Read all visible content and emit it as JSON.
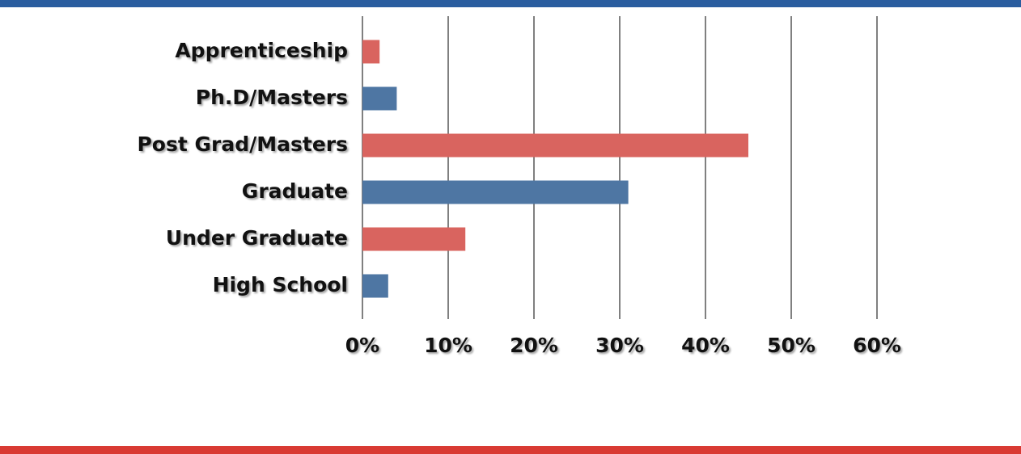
{
  "chart_data": {
    "type": "barh",
    "categories": [
      "Apprenticeship",
      "Ph.D/Masters",
      "Post Grad/Masters",
      "Graduate",
      "Under Graduate",
      "High School"
    ],
    "values": [
      2,
      4,
      45,
      31,
      12,
      3
    ],
    "colors": [
      "#d9645f",
      "#4e76a3",
      "#d9645f",
      "#4e76a3",
      "#d9645f",
      "#4e76a3"
    ],
    "xlim": [
      0,
      60
    ],
    "xticks": [
      {
        "value": 0,
        "label": "0%"
      },
      {
        "value": 10,
        "label": "10%"
      },
      {
        "value": 20,
        "label": "20%"
      },
      {
        "value": 30,
        "label": "30%"
      },
      {
        "value": 40,
        "label": "40%"
      },
      {
        "value": 50,
        "label": "50%"
      },
      {
        "value": 60,
        "label": "60%"
      }
    ],
    "grid": true
  }
}
